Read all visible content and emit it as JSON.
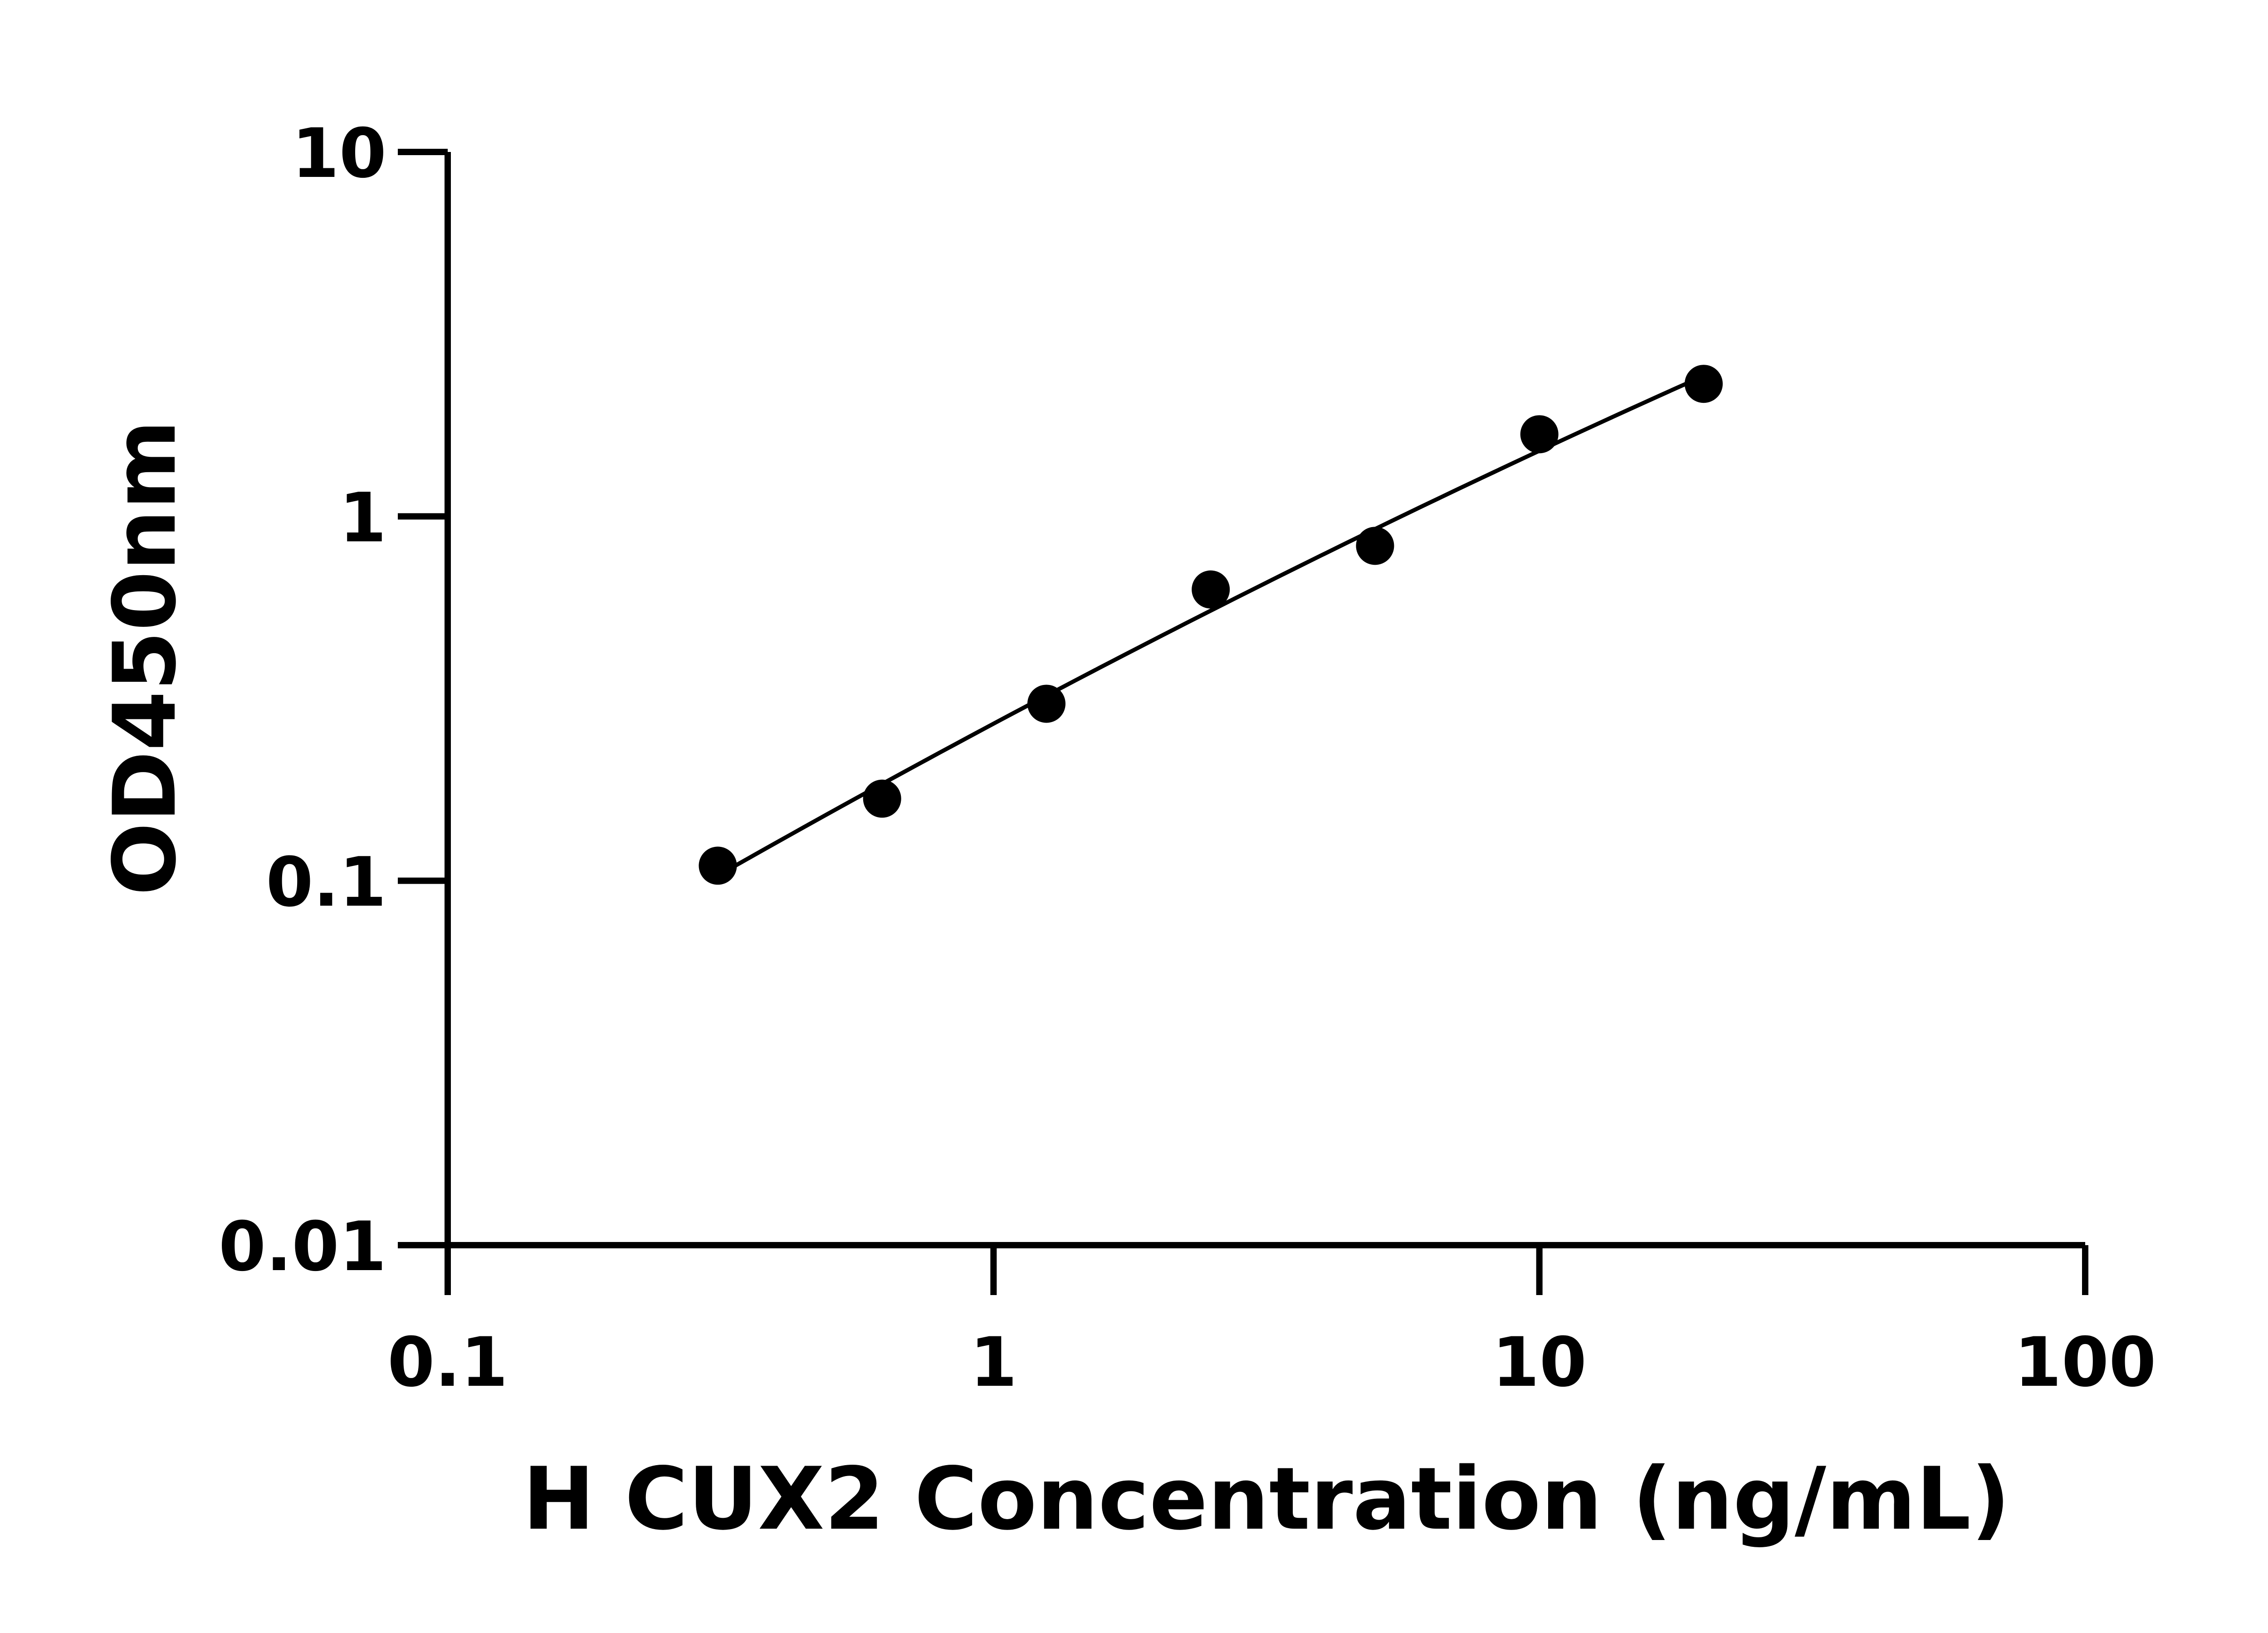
{
  "chart_data": {
    "type": "scatter",
    "title": "",
    "xlabel": "H CUX2 Concentration (ng/mL)",
    "ylabel": "OD450nm",
    "x_scale": "log",
    "y_scale": "log",
    "xlim": [
      0.1,
      100
    ],
    "ylim": [
      0.01,
      10
    ],
    "x_ticks": [
      "0.1",
      "1",
      "10",
      "100"
    ],
    "y_ticks": [
      "0.01",
      "0.1",
      "1",
      "10"
    ],
    "grid": false,
    "fit_line": true,
    "marker_color": "#000000",
    "series": [
      {
        "x": [
          0.3125,
          0.625,
          1.25,
          2.5,
          5,
          10,
          20
        ],
        "y": [
          0.11,
          0.168,
          0.306,
          0.63,
          0.83,
          1.68,
          2.31
        ]
      }
    ]
  }
}
